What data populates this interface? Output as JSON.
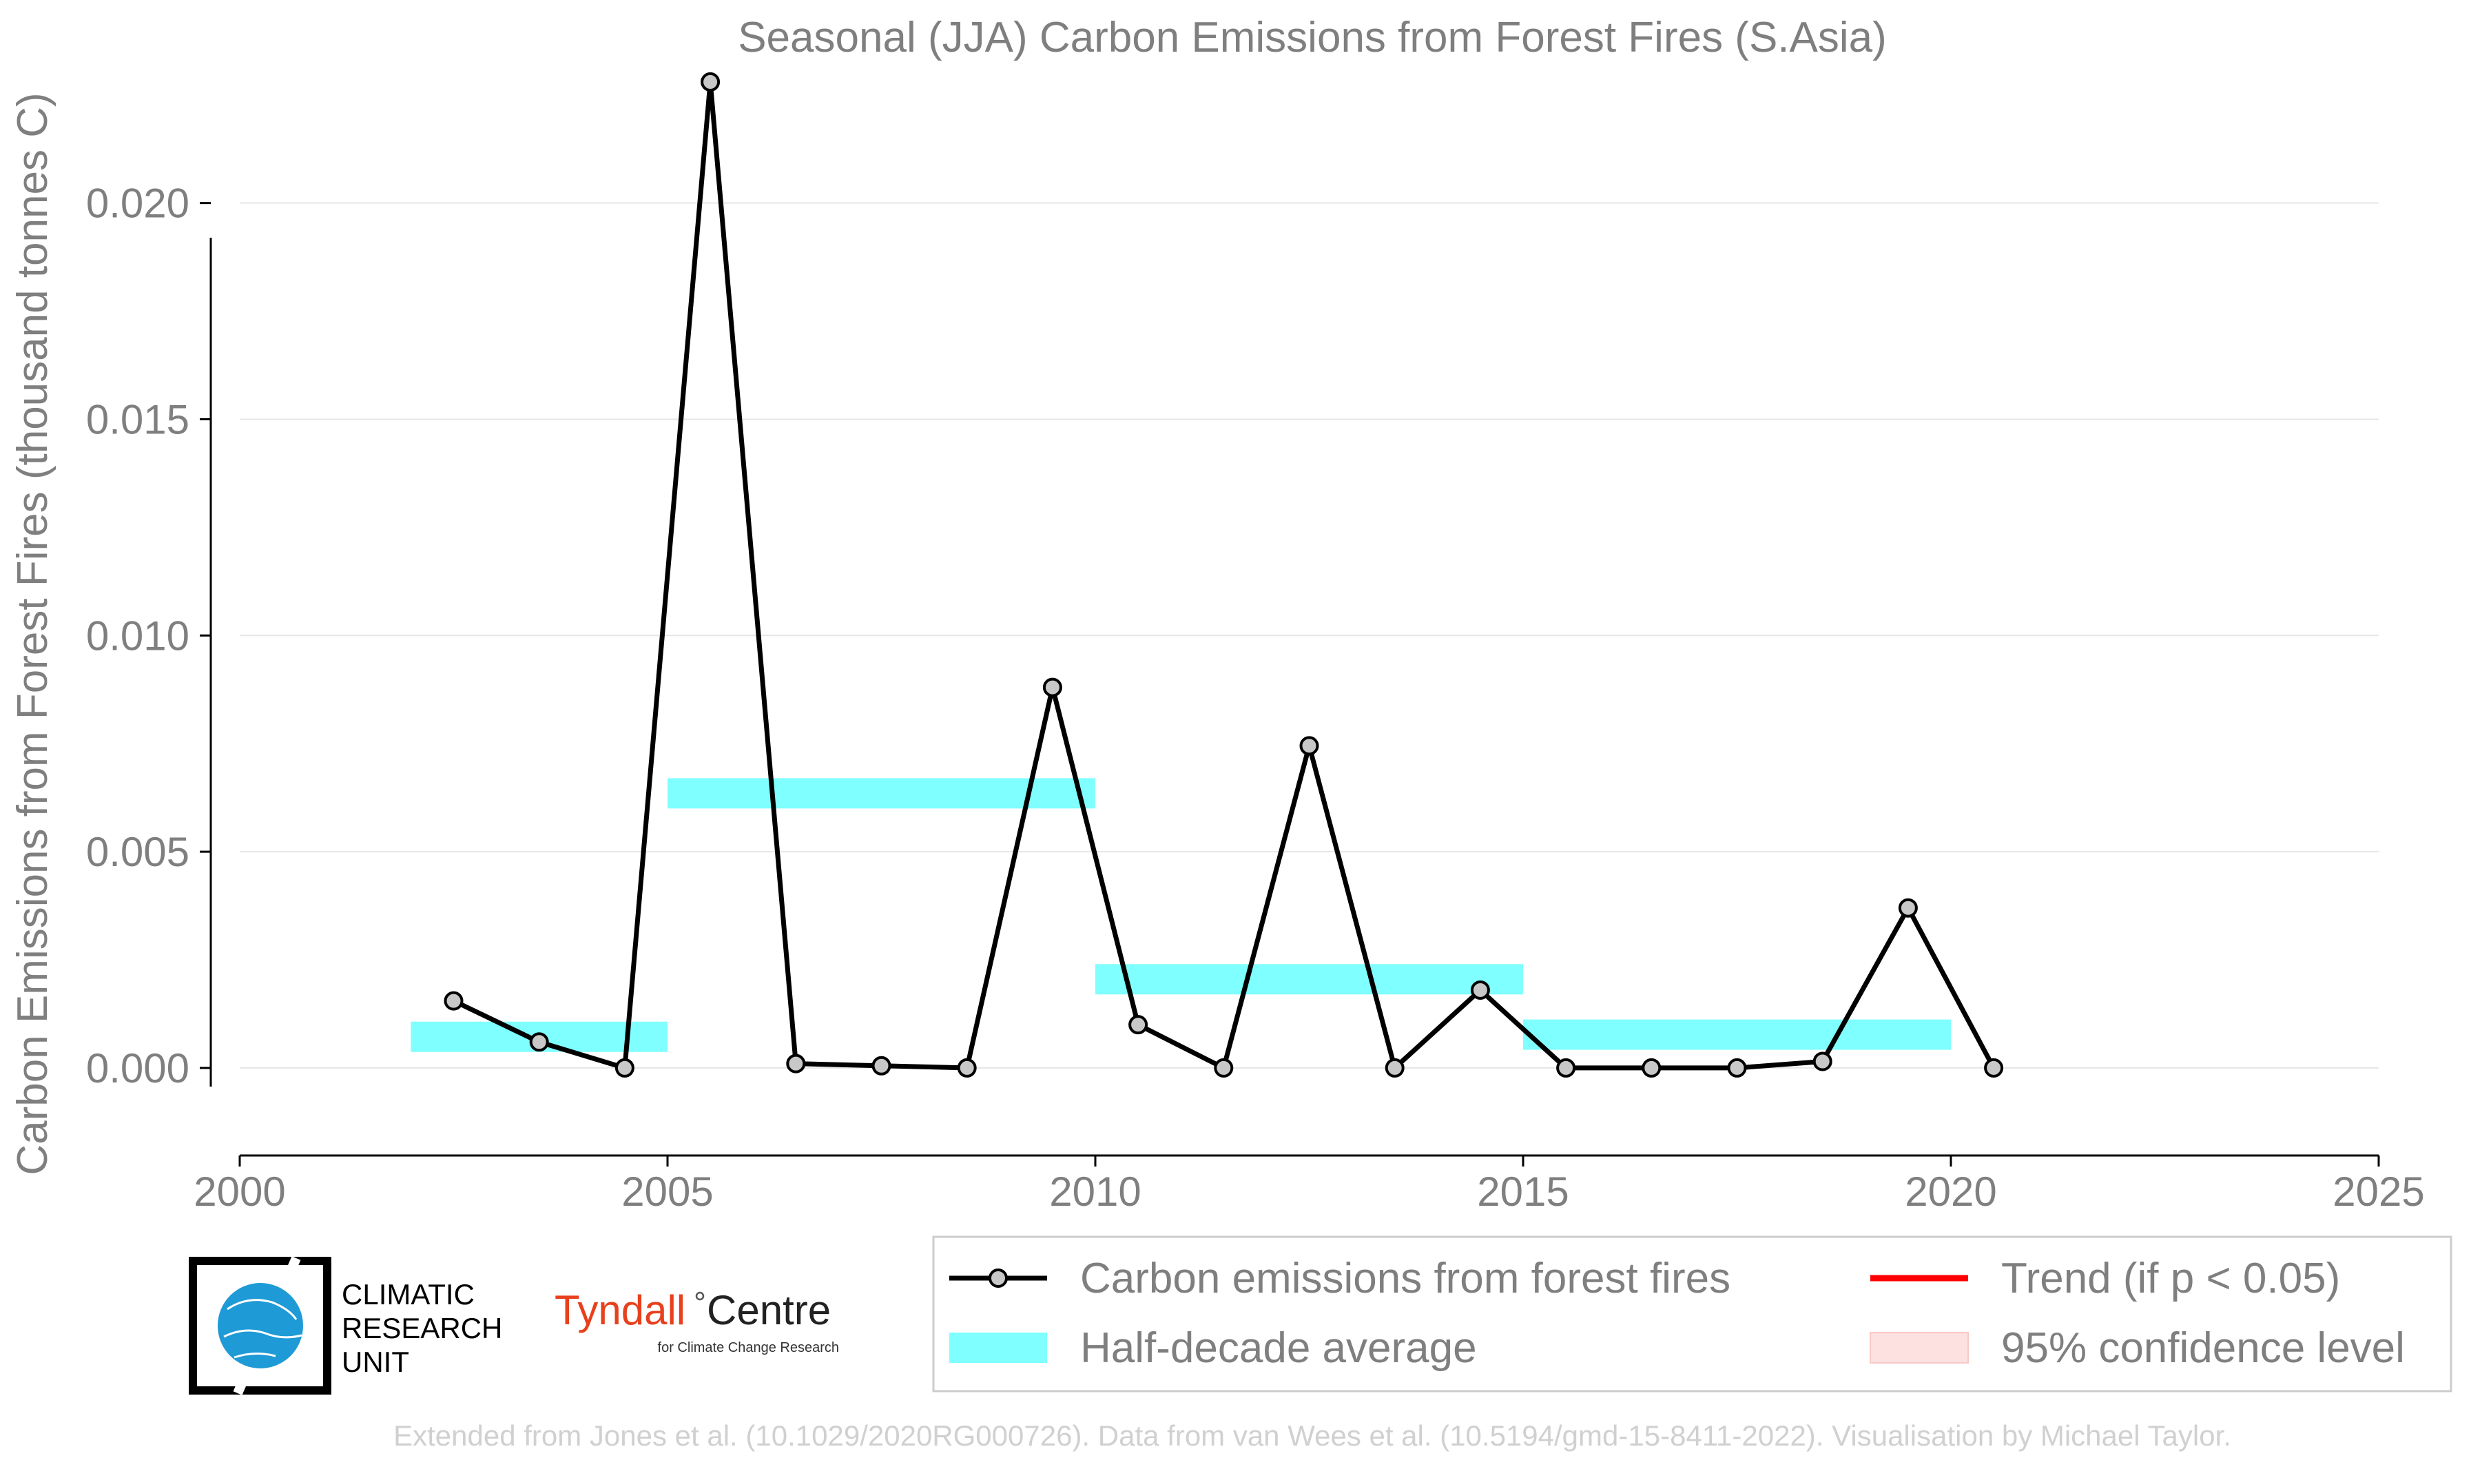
{
  "chart_data": {
    "type": "line",
    "title": "Seasonal (JJA) Carbon Emissions from Forest Fires (S.Asia)",
    "xlabel": "",
    "ylabel": "Carbon Emissions from Forest Fires (thousand tonnes C)",
    "xlim": [
      2000,
      2025
    ],
    "ylim": [
      -0.00075,
      0.0235
    ],
    "x_ticks": [
      "2000",
      "2005",
      "2010",
      "2015",
      "2020",
      "2025"
    ],
    "y_ticks": [
      "0.000",
      "0.005",
      "0.010",
      "0.015",
      "0.020"
    ],
    "grid": "horizontal",
    "series": [
      {
        "name": "Carbon emissions from forest fires",
        "x": [
          2002.5,
          2003.5,
          2004.5,
          2005.5,
          2006.5,
          2007.5,
          2008.5,
          2009.5,
          2010.5,
          2011.5,
          2012.5,
          2013.5,
          2014.5,
          2015.5,
          2016.5,
          2017.5,
          2018.5,
          2019.5,
          2020.5
        ],
        "values": [
          0.00155,
          0.0006,
          0.0,
          0.0228,
          0.0001,
          5e-05,
          0.0,
          0.0088,
          0.001,
          0.0,
          0.00745,
          0.0,
          0.0018,
          0.0,
          0.0,
          0.0,
          0.00015,
          0.0037,
          0.0
        ],
        "color": "#000000"
      },
      {
        "name": "Half-decade average",
        "color": "#7fffff",
        "segments": [
          {
            "x_start": 2002,
            "x_end": 2005,
            "value": 0.00072
          },
          {
            "x_start": 2005,
            "x_end": 2010,
            "value": 0.00635
          },
          {
            "x_start": 2010,
            "x_end": 2015,
            "value": 0.00205
          },
          {
            "x_start": 2015,
            "x_end": 2020,
            "value": 0.00077
          }
        ]
      }
    ],
    "legend": {
      "position": "bottom-right",
      "entries": [
        {
          "label": "Carbon emissions from forest fires",
          "style": "line-marker",
          "color": "#000000"
        },
        {
          "label": "Trend (if p < 0.05)",
          "style": "line",
          "color": "#ff0000"
        },
        {
          "label": "Half-decade average",
          "style": "patch",
          "color": "#7fffff"
        },
        {
          "label": "95% confidence level",
          "style": "patch",
          "color": "#fde0e0"
        }
      ]
    }
  },
  "logos": {
    "cru_line1": "CLIMATIC",
    "cru_line2": "RESEARCH",
    "cru_line3": "UNIT",
    "tyndall_name": "Tyndall",
    "tyndall_centre": "Centre",
    "tyndall_sub": "for Climate Change Research"
  },
  "credit": "Extended from Jones et al. (10.1029/2020RG000726). Data from van Wees et al. (10.5194/gmd-15-8411-2022). Visualisation by Michael Taylor.",
  "colors": {
    "line": "#000000",
    "marker_fill": "#c8c8c8",
    "half_decade": "#7fffff",
    "trend": "#ff0000",
    "confidence": "#fde0e0",
    "grid": "#e6e6e6",
    "text": "#7f7f7f"
  }
}
